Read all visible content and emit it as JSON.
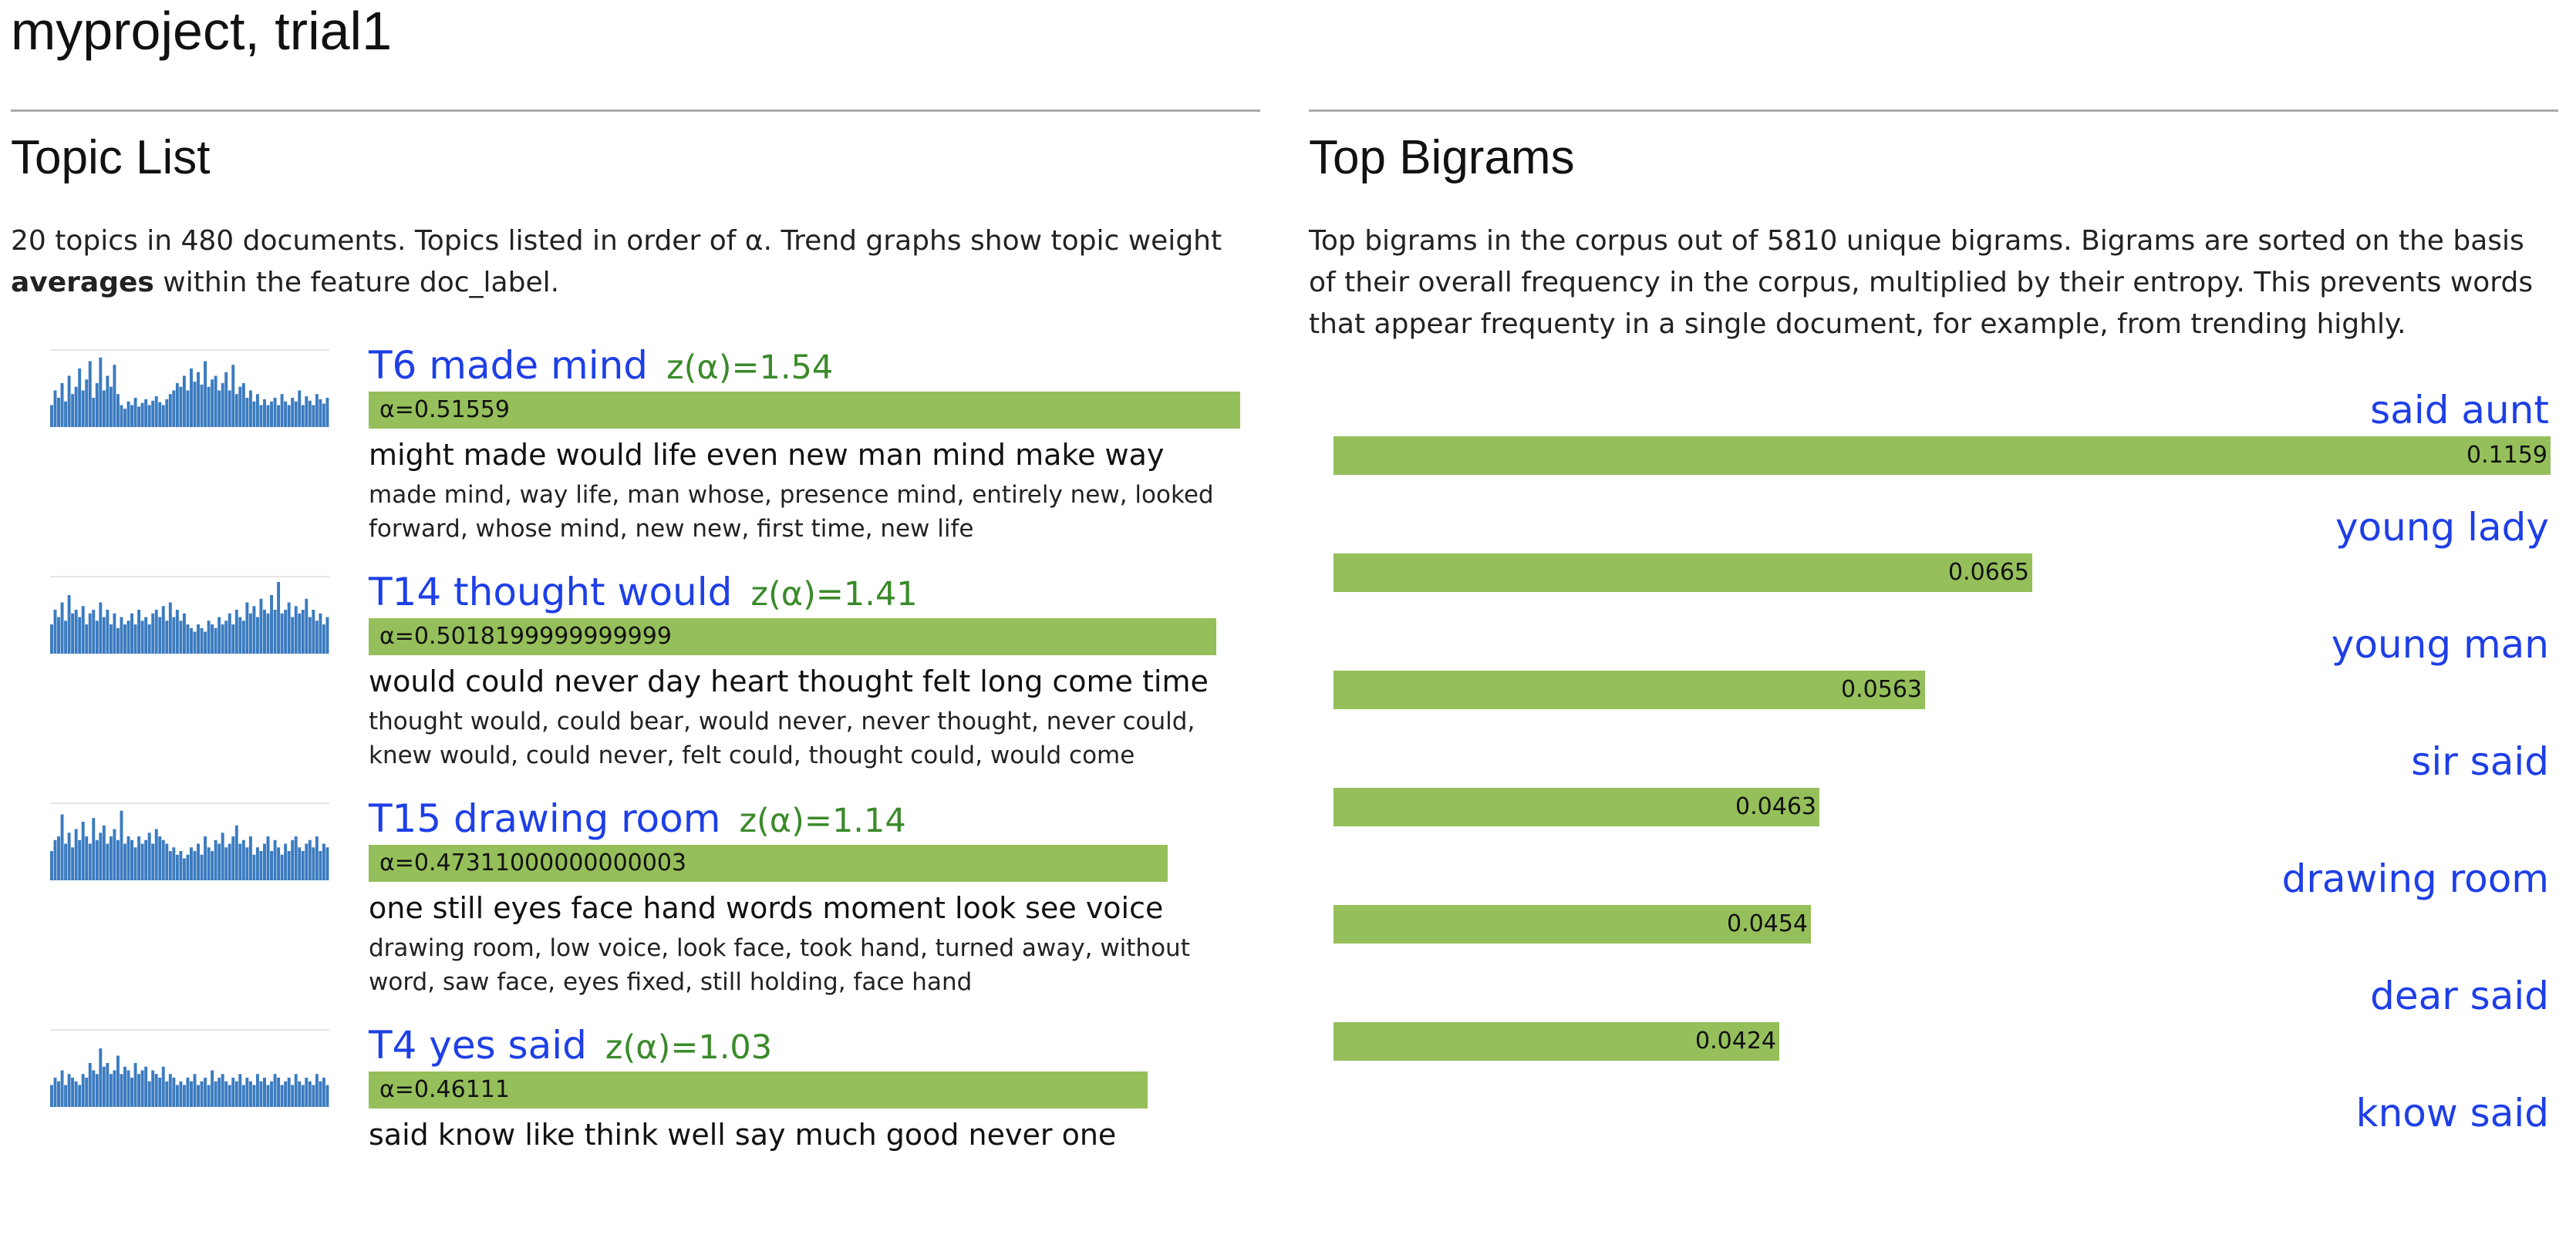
{
  "title": "myproject, trial1",
  "topic_list": {
    "heading": "Topic List",
    "intro_prefix": "20 topics in 480 documents. Topics listed in order of α. Trend graphs show topic weight",
    "intro_bold": "averages",
    "intro_suffix": "within the feature doc_label.",
    "bar_color": "#95bf5a",
    "link_color": "#1e3fe6",
    "z_color": "#3a8a2a",
    "trend_color": "#3b7bbf",
    "topics": [
      {
        "name": "T6 made mind",
        "z": "z(α)=1.54",
        "alpha": "α=0.51559",
        "alpha_fraction": 1.0,
        "words": "might made would life even new man mind make way",
        "bigrams": "made mind, way life, man whose, presence mind, entirely new, looked forward, whose mind, new new, first time, new life",
        "trend": [
          0.3,
          0.5,
          0.4,
          0.6,
          0.35,
          0.7,
          0.45,
          0.55,
          0.8,
          0.5,
          0.65,
          0.9,
          0.4,
          0.6,
          0.95,
          0.5,
          0.7,
          0.55,
          0.85,
          0.45,
          0.3,
          0.25,
          0.35,
          0.3,
          0.4,
          0.28,
          0.33,
          0.38,
          0.3,
          0.36,
          0.42,
          0.34,
          0.3,
          0.38,
          0.45,
          0.5,
          0.6,
          0.55,
          0.7,
          0.5,
          0.8,
          0.62,
          0.75,
          0.58,
          0.9,
          0.55,
          0.65,
          0.7,
          0.5,
          0.6,
          0.75,
          0.5,
          0.85,
          0.45,
          0.55,
          0.6,
          0.4,
          0.5,
          0.35,
          0.45,
          0.3,
          0.38,
          0.3,
          0.35,
          0.4,
          0.3,
          0.45,
          0.35,
          0.3,
          0.4,
          0.35,
          0.5,
          0.3,
          0.42,
          0.36,
          0.3,
          0.45,
          0.38,
          0.32,
          0.4
        ]
      },
      {
        "name": "T14 thought would",
        "z": "z(α)=1.41",
        "alpha": "α=0.5018199999999999",
        "alpha_fraction": 0.973,
        "words": "would could never day heart thought felt long come time",
        "bigrams": "thought would, could bear, would never, never thought, never could, knew would, could never, felt could, thought could, would come",
        "trend": [
          0.4,
          0.6,
          0.5,
          0.7,
          0.45,
          0.8,
          0.55,
          0.6,
          0.5,
          0.65,
          0.4,
          0.55,
          0.6,
          0.45,
          0.7,
          0.5,
          0.6,
          0.4,
          0.55,
          0.35,
          0.5,
          0.4,
          0.45,
          0.55,
          0.4,
          0.6,
          0.45,
          0.5,
          0.4,
          0.55,
          0.6,
          0.5,
          0.65,
          0.45,
          0.7,
          0.5,
          0.6,
          0.45,
          0.55,
          0.4,
          0.35,
          0.3,
          0.4,
          0.35,
          0.3,
          0.45,
          0.4,
          0.35,
          0.5,
          0.4,
          0.45,
          0.55,
          0.4,
          0.6,
          0.5,
          0.45,
          0.7,
          0.55,
          0.65,
          0.5,
          0.75,
          0.6,
          0.55,
          0.8,
          0.6,
          0.98,
          0.55,
          0.6,
          0.7,
          0.5,
          0.65,
          0.55,
          0.6,
          0.75,
          0.5,
          0.6,
          0.45,
          0.55,
          0.4,
          0.5
        ]
      },
      {
        "name": "T15 drawing room",
        "z": "z(α)=1.14",
        "alpha": "α=0.47311000000000003",
        "alpha_fraction": 0.917,
        "words": "one still eyes face hand words moment look see voice",
        "bigrams": "drawing room, low voice, look face, took hand, turned away, without word, saw face, eyes fixed, still holding, face hand",
        "trend": [
          0.4,
          0.55,
          0.6,
          0.9,
          0.5,
          0.65,
          0.45,
          0.7,
          0.55,
          0.8,
          0.6,
          0.5,
          0.85,
          0.55,
          0.65,
          0.75,
          0.5,
          0.6,
          0.7,
          0.55,
          0.95,
          0.5,
          0.6,
          0.55,
          0.45,
          0.6,
          0.5,
          0.55,
          0.65,
          0.5,
          0.7,
          0.6,
          0.55,
          0.5,
          0.4,
          0.45,
          0.35,
          0.4,
          0.3,
          0.35,
          0.45,
          0.4,
          0.5,
          0.35,
          0.6,
          0.45,
          0.4,
          0.55,
          0.5,
          0.65,
          0.45,
          0.5,
          0.6,
          0.75,
          0.5,
          0.55,
          0.45,
          0.6,
          0.35,
          0.45,
          0.4,
          0.5,
          0.6,
          0.4,
          0.55,
          0.45,
          0.35,
          0.5,
          0.4,
          0.55,
          0.6,
          0.45,
          0.4,
          0.5,
          0.55,
          0.45,
          0.6,
          0.4,
          0.5,
          0.45
        ]
      },
      {
        "name": "T4 yes said",
        "z": "z(α)=1.03",
        "alpha": "α=0.46111",
        "alpha_fraction": 0.894,
        "words": "said know like think well say much good never one",
        "bigrams": "",
        "trend": [
          0.3,
          0.4,
          0.35,
          0.5,
          0.3,
          0.45,
          0.4,
          0.35,
          0.3,
          0.45,
          0.4,
          0.6,
          0.5,
          0.45,
          0.8,
          0.55,
          0.6,
          0.45,
          0.5,
          0.7,
          0.45,
          0.55,
          0.5,
          0.4,
          0.6,
          0.45,
          0.5,
          0.55,
          0.35,
          0.5,
          0.45,
          0.4,
          0.55,
          0.35,
          0.45,
          0.4,
          0.3,
          0.35,
          0.3,
          0.4,
          0.35,
          0.45,
          0.3,
          0.35,
          0.4,
          0.3,
          0.5,
          0.35,
          0.4,
          0.45,
          0.35,
          0.3,
          0.4,
          0.35,
          0.45,
          0.3,
          0.4,
          0.35,
          0.3,
          0.45,
          0.35,
          0.4,
          0.3,
          0.35,
          0.45,
          0.4,
          0.3,
          0.35,
          0.4,
          0.3,
          0.45,
          0.35,
          0.3,
          0.4,
          0.35,
          0.3,
          0.45,
          0.35,
          0.4,
          0.3
        ]
      }
    ]
  },
  "top_bigrams": {
    "heading": "Top Bigrams",
    "intro": "Top bigrams in the corpus out of 5810 unique bigrams. Bigrams are sorted on the basis of their overall frequency in the corpus, multiplied by their entropy. This prevents words that appear frequenty in a single document, for example, from trending highly.",
    "bigrams": [
      {
        "label": "said aunt",
        "value": "0.1159",
        "fraction": 1.0
      },
      {
        "label": "young lady",
        "value": "0.0665",
        "fraction": 0.574
      },
      {
        "label": "young man",
        "value": "0.0563",
        "fraction": 0.486
      },
      {
        "label": "sir said",
        "value": "0.0463",
        "fraction": 0.399
      },
      {
        "label": "drawing room",
        "value": "0.0454",
        "fraction": 0.392
      },
      {
        "label": "dear said",
        "value": "0.0424",
        "fraction": 0.366
      },
      {
        "label": "know said",
        "value": "",
        "fraction": 0.0
      }
    ]
  }
}
